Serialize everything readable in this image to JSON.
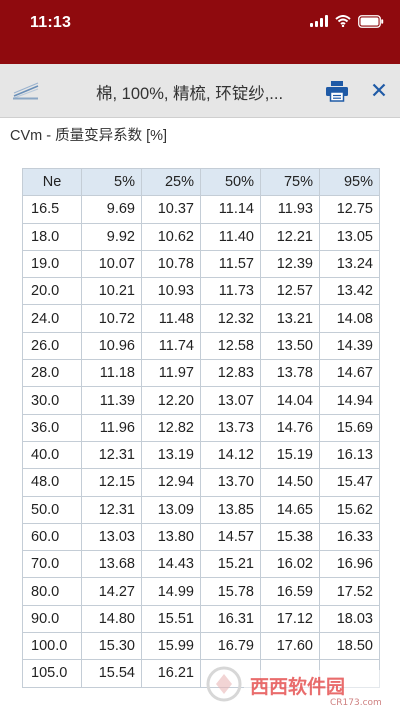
{
  "status": {
    "time": "11:13"
  },
  "toolbar": {
    "title": "棉, 100%, 精梳, 环锭纱,..."
  },
  "section_title": "CVm - 质量变异系数 [%]",
  "table": {
    "headers": [
      "Ne",
      "5%",
      "25%",
      "50%",
      "75%",
      "95%"
    ],
    "rows": [
      [
        "16.5",
        "9.69",
        "10.37",
        "11.14",
        "11.93",
        "12.75"
      ],
      [
        "18.0",
        "9.92",
        "10.62",
        "11.40",
        "12.21",
        "13.05"
      ],
      [
        "19.0",
        "10.07",
        "10.78",
        "11.57",
        "12.39",
        "13.24"
      ],
      [
        "20.0",
        "10.21",
        "10.93",
        "11.73",
        "12.57",
        "13.42"
      ],
      [
        "24.0",
        "10.72",
        "11.48",
        "12.32",
        "13.21",
        "14.08"
      ],
      [
        "26.0",
        "10.96",
        "11.74",
        "12.58",
        "13.50",
        "14.39"
      ],
      [
        "28.0",
        "11.18",
        "11.97",
        "12.83",
        "13.78",
        "14.67"
      ],
      [
        "30.0",
        "11.39",
        "12.20",
        "13.07",
        "14.04",
        "14.94"
      ],
      [
        "36.0",
        "11.96",
        "12.82",
        "13.73",
        "14.76",
        "15.69"
      ],
      [
        "40.0",
        "12.31",
        "13.19",
        "14.12",
        "15.19",
        "16.13"
      ],
      [
        "48.0",
        "12.15",
        "12.94",
        "13.70",
        "14.50",
        "15.47"
      ],
      [
        "50.0",
        "12.31",
        "13.09",
        "13.85",
        "14.65",
        "15.62"
      ],
      [
        "60.0",
        "13.03",
        "13.80",
        "14.57",
        "15.38",
        "16.33"
      ],
      [
        "70.0",
        "13.68",
        "14.43",
        "15.21",
        "16.02",
        "16.96"
      ],
      [
        "80.0",
        "14.27",
        "14.99",
        "15.78",
        "16.59",
        "17.52"
      ],
      [
        "90.0",
        "14.80",
        "15.51",
        "16.31",
        "17.12",
        "18.03"
      ],
      [
        "100.0",
        "15.30",
        "15.99",
        "16.79",
        "17.60",
        "18.50"
      ],
      [
        "105.0",
        "15.54",
        "16.21",
        "",
        "",
        ""
      ]
    ]
  },
  "watermark": {
    "brand": "西西软件园",
    "site": "CR173.com"
  },
  "colors": {
    "status_bar": "#8f0a0e",
    "toolbar": "#e6e6e6",
    "header_cell": "#dce7f2",
    "accent": "#1f5aa6"
  },
  "icons": {
    "logo": "yarn-logo-icon",
    "print": "printer-icon",
    "close": "close-icon"
  }
}
